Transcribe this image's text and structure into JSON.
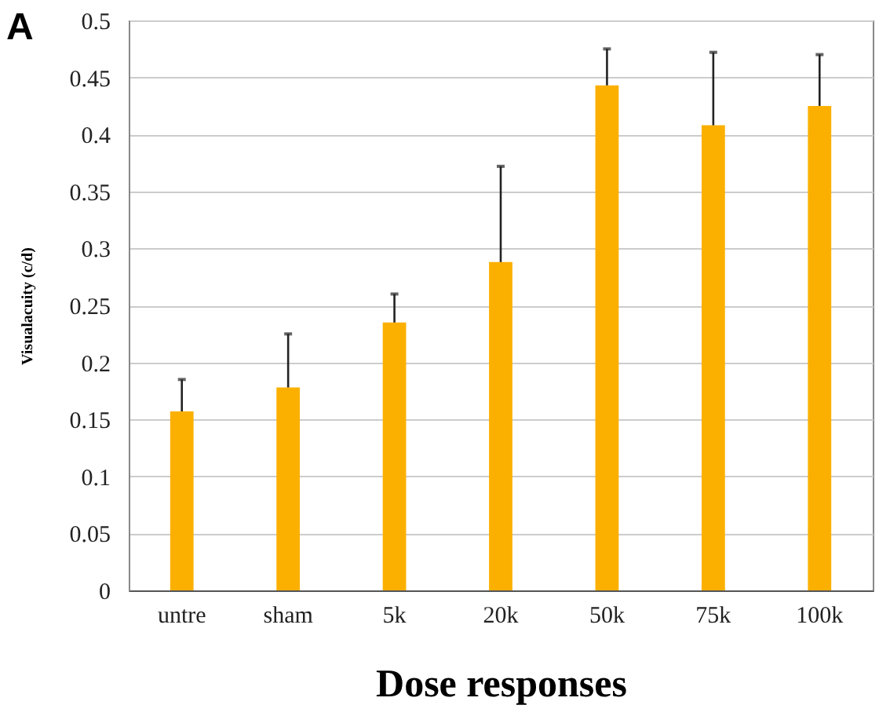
{
  "chart_data": {
    "type": "bar",
    "title": "A",
    "xlabel": "Dose responses",
    "ylabel": "Visualacuity (c/d)",
    "categories": [
      "untre",
      "sham",
      "5k",
      "20k",
      "50k",
      "75k",
      "100k"
    ],
    "series": [
      {
        "color": "#fbb000",
        "values": [
          0.157,
          0.178,
          0.235,
          0.288,
          0.443,
          0.408,
          0.425
        ],
        "errors": [
          [
            0.157,
            0.185
          ],
          [
            0.178,
            0.225
          ],
          [
            0.235,
            0.26
          ],
          [
            0.288,
            0.372
          ],
          [
            0.443,
            0.475
          ],
          [
            0.408,
            0.472
          ],
          [
            0.425,
            0.47
          ]
        ]
      }
    ],
    "ylim": [
      0,
      0.5
    ],
    "yticks": [
      0,
      0.05,
      0.1,
      0.15,
      0.2,
      0.25,
      0.3,
      0.35,
      0.4,
      0.45,
      0.5
    ],
    "grid": "y"
  }
}
